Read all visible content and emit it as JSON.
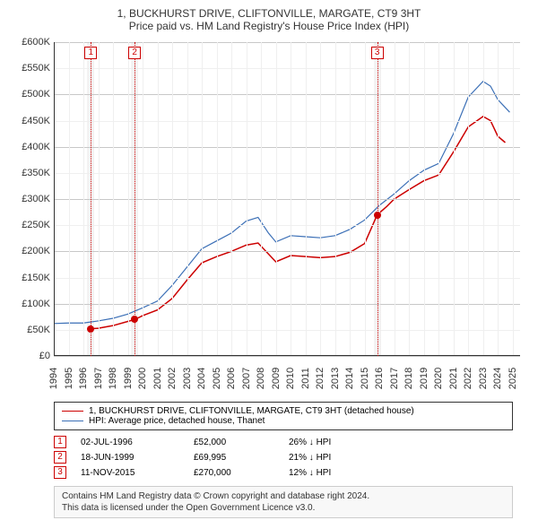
{
  "title": {
    "main": "1, BUCKHURST DRIVE, CLIFTONVILLE, MARGATE, CT9 3HT",
    "sub": "Price paid vs. HM Land Registry's House Price Index (HPI)"
  },
  "chart": {
    "type": "line",
    "background_color": "#ffffff",
    "grid_color_major": "#c8c8c8",
    "grid_color_minor": "#efefef",
    "axis_color": "#333333",
    "xlim": [
      1994,
      2025.5
    ],
    "ylim": [
      0,
      600
    ],
    "y_ticks": [
      0,
      50,
      100,
      150,
      200,
      250,
      300,
      350,
      400,
      450,
      500,
      550,
      600
    ],
    "y_tick_labels": [
      "£0",
      "£50K",
      "£100K",
      "£150K",
      "£200K",
      "£250K",
      "£300K",
      "£350K",
      "£400K",
      "£450K",
      "£500K",
      "£550K",
      "£600K"
    ],
    "x_ticks": [
      1994,
      1995,
      1996,
      1997,
      1998,
      1999,
      2000,
      2001,
      2002,
      2003,
      2004,
      2005,
      2006,
      2007,
      2008,
      2009,
      2010,
      2011,
      2012,
      2013,
      2014,
      2015,
      2016,
      2017,
      2018,
      2019,
      2020,
      2021,
      2022,
      2023,
      2024,
      2025
    ],
    "series": [
      {
        "name": "price_paid",
        "label": "1, BUCKHURST DRIVE, CLIFTONVILLE, MARGATE, CT9 3HT (detached house)",
        "color": "#cc0000",
        "line_width": 1.5,
        "data": [
          [
            1996.5,
            52
          ],
          [
            1997,
            53
          ],
          [
            1998,
            58
          ],
          [
            1999,
            66
          ],
          [
            1999.5,
            70
          ],
          [
            2000,
            77
          ],
          [
            2001,
            88
          ],
          [
            2002,
            110
          ],
          [
            2003,
            145
          ],
          [
            2004,
            178
          ],
          [
            2005,
            190
          ],
          [
            2006,
            200
          ],
          [
            2007,
            212
          ],
          [
            2007.8,
            216
          ],
          [
            2008.5,
            195
          ],
          [
            2009,
            180
          ],
          [
            2010,
            192
          ],
          [
            2011,
            190
          ],
          [
            2012,
            188
          ],
          [
            2013,
            190
          ],
          [
            2014,
            198
          ],
          [
            2015,
            215
          ],
          [
            2015.85,
            270
          ],
          [
            2016.5,
            286
          ],
          [
            2017,
            300
          ],
          [
            2018,
            318
          ],
          [
            2019,
            335
          ],
          [
            2020,
            346
          ],
          [
            2021,
            390
          ],
          [
            2022,
            438
          ],
          [
            2023,
            458
          ],
          [
            2023.5,
            450
          ],
          [
            2024,
            420
          ],
          [
            2024.5,
            408
          ]
        ]
      },
      {
        "name": "hpi",
        "label": "HPI: Average price, detached house, Thanet",
        "color": "#3b6fb6",
        "line_width": 1.2,
        "data": [
          [
            1994,
            62
          ],
          [
            1995,
            63
          ],
          [
            1996,
            63
          ],
          [
            1997,
            67
          ],
          [
            1998,
            72
          ],
          [
            1999,
            80
          ],
          [
            2000,
            92
          ],
          [
            2001,
            105
          ],
          [
            2002,
            135
          ],
          [
            2003,
            170
          ],
          [
            2004,
            205
          ],
          [
            2005,
            220
          ],
          [
            2006,
            235
          ],
          [
            2007,
            258
          ],
          [
            2007.8,
            265
          ],
          [
            2008.5,
            235
          ],
          [
            2009,
            218
          ],
          [
            2010,
            230
          ],
          [
            2011,
            228
          ],
          [
            2012,
            226
          ],
          [
            2013,
            230
          ],
          [
            2014,
            242
          ],
          [
            2015,
            260
          ],
          [
            2016,
            288
          ],
          [
            2017,
            310
          ],
          [
            2018,
            335
          ],
          [
            2019,
            355
          ],
          [
            2020,
            368
          ],
          [
            2021,
            425
          ],
          [
            2022,
            495
          ],
          [
            2023,
            525
          ],
          [
            2023.5,
            516
          ],
          [
            2024,
            490
          ],
          [
            2024.8,
            466
          ]
        ]
      }
    ],
    "sale_markers": [
      {
        "num": "1",
        "x": 1996.5,
        "color": "#cc0000"
      },
      {
        "num": "2",
        "x": 1999.46,
        "color": "#cc0000"
      },
      {
        "num": "3",
        "x": 2015.85,
        "color": "#cc0000"
      }
    ],
    "sale_points": [
      {
        "x": 1996.5,
        "y": 52,
        "color": "#cc0000"
      },
      {
        "x": 1999.46,
        "y": 70,
        "color": "#cc0000"
      },
      {
        "x": 2015.85,
        "y": 270,
        "color": "#cc0000"
      }
    ]
  },
  "legend": {
    "items": [
      {
        "color": "#cc0000",
        "text": "1, BUCKHURST DRIVE, CLIFTONVILLE, MARGATE, CT9 3HT (detached house)"
      },
      {
        "color": "#3b6fb6",
        "text": "HPI: Average price, detached house, Thanet"
      }
    ]
  },
  "sales": [
    {
      "num": "1",
      "color": "#cc0000",
      "date": "02-JUL-1996",
      "price": "£52,000",
      "diff": "26% ↓ HPI"
    },
    {
      "num": "2",
      "color": "#cc0000",
      "date": "18-JUN-1999",
      "price": "£69,995",
      "diff": "21% ↓ HPI"
    },
    {
      "num": "3",
      "color": "#cc0000",
      "date": "11-NOV-2015",
      "price": "£270,000",
      "diff": "12% ↓ HPI"
    }
  ],
  "footer": {
    "line1": "Contains HM Land Registry data © Crown copyright and database right 2024.",
    "line2": "This data is licensed under the Open Government Licence v3.0."
  }
}
